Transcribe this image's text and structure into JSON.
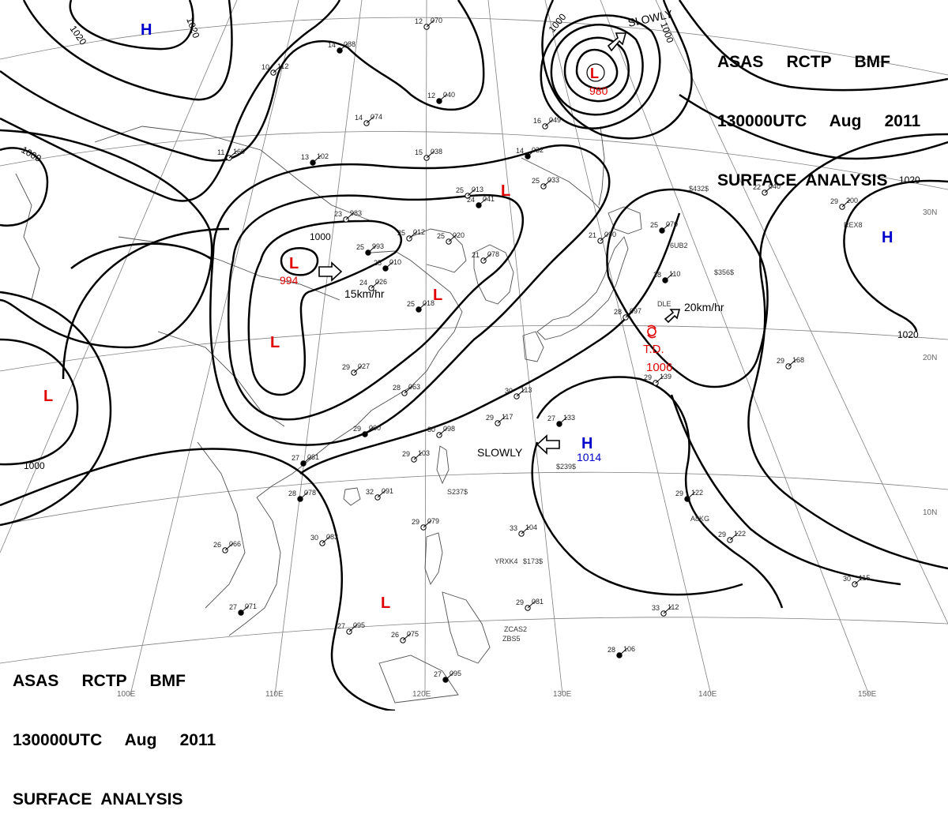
{
  "header": {
    "lines": [
      "ASAS     RCTP     BMF",
      "130000UTC     Aug     2011",
      "SURFACE  ANALYSIS"
    ]
  },
  "footer": {
    "lines": [
      "ASAS     RCTP     BMF",
      "130000UTC     Aug     2011",
      "SURFACE  ANALYSIS"
    ]
  },
  "longitudes": [
    "100E",
    "110E",
    "120E",
    "130E",
    "140E",
    "150E"
  ],
  "latitudes": [
    "30N",
    "20N",
    "10N"
  ],
  "isobar_labels": [
    "1020",
    "1020",
    "1000",
    "1000",
    "1000",
    "1000",
    "1000",
    "1020",
    "1020"
  ],
  "pressure_systems": [
    {
      "type": "H",
      "value": "",
      "color": "#0000cc"
    },
    {
      "type": "L",
      "value": "980",
      "color": "#e00000"
    },
    {
      "type": "L",
      "value": "",
      "color": "#e00000"
    },
    {
      "type": "L",
      "value": "994",
      "color": "#e00000"
    },
    {
      "type": "L",
      "value": "",
      "color": "#e00000"
    },
    {
      "type": "L",
      "value": "",
      "color": "#e00000"
    },
    {
      "type": "L",
      "value": "",
      "color": "#e00000"
    },
    {
      "type": "H",
      "value": "",
      "color": "#0000cc"
    },
    {
      "type": "H",
      "value": "1014",
      "color": "#0000cc"
    },
    {
      "type": "L",
      "value": "",
      "color": "#e00000"
    }
  ],
  "tropical_depression": {
    "label": "T.D.",
    "value": "1006",
    "color": "#e00000"
  },
  "movements": [
    "SLOWLY",
    "15km/hr",
    "20km/hr",
    "SLOWLY"
  ],
  "stations": [
    {
      "t": "14",
      "p": "088"
    },
    {
      "t": "10",
      "p": "112"
    },
    {
      "t": "12",
      "p": "070"
    },
    {
      "t": "12",
      "p": "040"
    },
    {
      "t": "14",
      "p": "074"
    },
    {
      "t": "11",
      "p": "160"
    },
    {
      "t": "13",
      "p": "102"
    },
    {
      "t": "15",
      "p": "038"
    },
    {
      "t": "16",
      "p": "049"
    },
    {
      "t": "14",
      "p": "032"
    },
    {
      "t": "25",
      "p": "013"
    },
    {
      "t": "23",
      "p": "983"
    },
    {
      "t": "25",
      "p": "993"
    },
    {
      "t": "25",
      "p": "012"
    },
    {
      "t": "25",
      "p": "020"
    },
    {
      "t": "25",
      "p": "010"
    },
    {
      "t": "21",
      "p": "078"
    },
    {
      "t": "24",
      "p": "026"
    },
    {
      "t": "25",
      "p": "018"
    },
    {
      "t": "29",
      "p": "027"
    },
    {
      "t": "28",
      "p": "063"
    },
    {
      "t": "29",
      "p": "060"
    },
    {
      "t": "30",
      "p": "098"
    },
    {
      "t": "29",
      "p": "117"
    },
    {
      "t": "27",
      "p": "081"
    },
    {
      "t": "29",
      "p": "103"
    },
    {
      "t": "32",
      "p": "091"
    },
    {
      "t": "28",
      "p": "078"
    },
    {
      "t": "30",
      "p": "083"
    },
    {
      "t": "26",
      "p": "066"
    },
    {
      "t": "27",
      "p": "071"
    },
    {
      "t": "27",
      "p": "095"
    },
    {
      "t": "26",
      "p": "075"
    },
    {
      "t": "27",
      "p": "095"
    },
    {
      "t": "29",
      "p": "081"
    },
    {
      "t": "33",
      "p": "104"
    },
    {
      "t": "29",
      "p": "122"
    },
    {
      "t": "29",
      "p": "122"
    },
    {
      "t": "33",
      "p": "112"
    },
    {
      "t": "28",
      "p": "106"
    },
    {
      "t": "30",
      "p": "115"
    },
    {
      "t": "29",
      "p": "168"
    },
    {
      "t": "28",
      "p": "110"
    },
    {
      "t": "29",
      "p": "139"
    },
    {
      "t": "28",
      "p": "097"
    },
    {
      "t": "25",
      "p": "070"
    },
    {
      "t": "22",
      "p": "040"
    },
    {
      "t": "29",
      "p": "200"
    },
    {
      "t": "24",
      "p": "041"
    },
    {
      "t": "25",
      "p": "033"
    },
    {
      "t": "21",
      "p": "090"
    },
    {
      "t": "27",
      "p": "133"
    },
    {
      "t": "30",
      "p": "113"
    },
    {
      "t": "29",
      "p": "079"
    }
  ],
  "ship_ids": [
    "REX8",
    "6UB2",
    "DLE",
    "$432$",
    "$239$",
    "A8KG",
    "$173$",
    "YRXK4",
    "ZCAS2",
    "ZBS5",
    "$356$",
    "S237$"
  ],
  "colors": {
    "low": "#e00000",
    "high": "#0000cc",
    "isobar": "#000000",
    "grid": "#808080",
    "coast": "#505050"
  }
}
